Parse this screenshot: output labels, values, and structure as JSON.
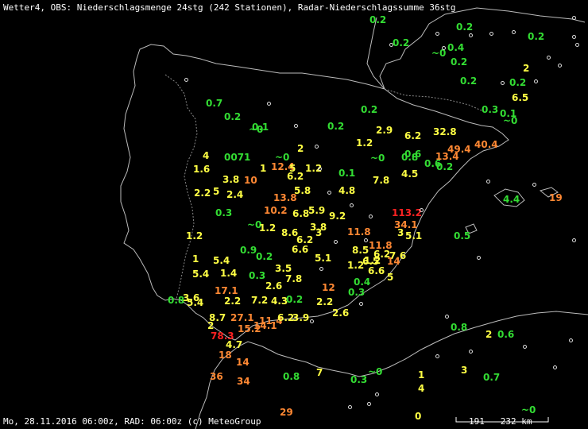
{
  "header": {
    "title": "Wetter4, OBS: Niederschlagsmenge 24stg (242 Stationen), Radar-Niederschlagssumme 36stg"
  },
  "footer": {
    "text": "Mo, 28.11.2016 06:00z, RAD: 06:00z (c) MeteoGroup",
    "scale_label": "191 - 232 km"
  },
  "colors": {
    "background": "#000000",
    "coast": "#bbbbbb",
    "low": "#33dd33",
    "mid": "#ffff44",
    "high": "#ff8833",
    "extreme": "#ff2222"
  },
  "observations": [
    {
      "v": "0.2",
      "c": "g"
    },
    {
      "v": "0.2",
      "c": "g"
    },
    {
      "v": "0.2",
      "c": "g"
    },
    {
      "v": "0.4",
      "c": "g"
    },
    {
      "v": "0.2",
      "c": "g"
    },
    {
      "v": "~0",
      "c": "g"
    },
    {
      "v": "0.2",
      "c": "g"
    },
    {
      "v": "2",
      "c": "y"
    },
    {
      "v": "0.2",
      "c": "g"
    },
    {
      "v": "0.2",
      "c": "g"
    },
    {
      "v": "6.5",
      "c": "y"
    },
    {
      "v": "0.7",
      "c": "g"
    },
    {
      "v": "0.2",
      "c": "g"
    },
    {
      "v": "0.3",
      "c": "g"
    },
    {
      "v": "0.1",
      "c": "g"
    },
    {
      "v": "~0",
      "c": "g"
    },
    {
      "v": "0.2",
      "c": "g"
    },
    {
      "v": "0.2",
      "c": "g"
    },
    {
      "v": "~0",
      "c": "g"
    },
    {
      "v": "0.1",
      "c": "g"
    },
    {
      "v": "2.9",
      "c": "y"
    },
    {
      "v": "6.2",
      "c": "y"
    },
    {
      "v": "32.8",
      "c": "y"
    },
    {
      "v": "1.2",
      "c": "y"
    },
    {
      "v": "40.4",
      "c": "o"
    },
    {
      "v": "49.4",
      "c": "o"
    },
    {
      "v": "2",
      "c": "y"
    },
    {
      "v": "4",
      "c": "y"
    },
    {
      "v": "0071",
      "c": "g"
    },
    {
      "v": "~0",
      "c": "g"
    },
    {
      "v": "0.6",
      "c": "g"
    },
    {
      "v": "0.8",
      "c": "g"
    },
    {
      "v": "~0",
      "c": "g"
    },
    {
      "v": "13.4",
      "c": "o"
    },
    {
      "v": "0.6",
      "c": "g"
    },
    {
      "v": "0.2",
      "c": "g"
    },
    {
      "v": "1.6",
      "c": "y"
    },
    {
      "v": "1",
      "c": "y"
    },
    {
      "v": "12.4",
      "c": "o"
    },
    {
      "v": "5",
      "c": "y"
    },
    {
      "v": "1.2",
      "c": "y"
    },
    {
      "v": "0.1",
      "c": "g"
    },
    {
      "v": "4.5",
      "c": "y"
    },
    {
      "v": "3.8",
      "c": "y"
    },
    {
      "v": "10",
      "c": "o"
    },
    {
      "v": "6.2",
      "c": "y"
    },
    {
      "v": "7.8",
      "c": "y"
    },
    {
      "v": "2.2",
      "c": "y"
    },
    {
      "v": "5",
      "c": "y"
    },
    {
      "v": "2.4",
      "c": "y"
    },
    {
      "v": "5.8",
      "c": "y"
    },
    {
      "v": "4.8",
      "c": "y"
    },
    {
      "v": "13.8",
      "c": "o"
    },
    {
      "v": "4.4",
      "c": "g"
    },
    {
      "v": "19",
      "c": "o"
    },
    {
      "v": "0.3",
      "c": "g"
    },
    {
      "v": "10.2",
      "c": "o"
    },
    {
      "v": "6.8",
      "c": "y"
    },
    {
      "v": "5.9",
      "c": "y"
    },
    {
      "v": "9.2",
      "c": "y"
    },
    {
      "v": "113.2",
      "c": "r"
    },
    {
      "v": "34.1",
      "c": "o"
    },
    {
      "v": "~0",
      "c": "g"
    },
    {
      "v": "1.2",
      "c": "y"
    },
    {
      "v": "8.6",
      "c": "y"
    },
    {
      "v": "3.8",
      "c": "y"
    },
    {
      "v": "3",
      "c": "y"
    },
    {
      "v": "11.8",
      "c": "o"
    },
    {
      "v": "3",
      "c": "y"
    },
    {
      "v": "5.1",
      "c": "y"
    },
    {
      "v": "1.2",
      "c": "y"
    },
    {
      "v": "6.2",
      "c": "y"
    },
    {
      "v": "0.5",
      "c": "g"
    },
    {
      "v": "0.9",
      "c": "g"
    },
    {
      "v": "6.6",
      "c": "y"
    },
    {
      "v": "11.8",
      "c": "o"
    },
    {
      "v": "1.2",
      "c": "y"
    },
    {
      "v": "8.5",
      "c": "y"
    },
    {
      "v": "6.2",
      "c": "y"
    },
    {
      "v": "7.6",
      "c": "y"
    },
    {
      "v": "1",
      "c": "y"
    },
    {
      "v": "5.4",
      "c": "y"
    },
    {
      "v": "0.2",
      "c": "g"
    },
    {
      "v": "5.1",
      "c": "y"
    },
    {
      "v": "6.5",
      "c": "y"
    },
    {
      "v": "14",
      "c": "o"
    },
    {
      "v": "3.5",
      "c": "y"
    },
    {
      "v": "1.2",
      "c": "y"
    },
    {
      "v": "5.4",
      "c": "y"
    },
    {
      "v": "1.4",
      "c": "y"
    },
    {
      "v": "0.3",
      "c": "g"
    },
    {
      "v": "7.8",
      "c": "y"
    },
    {
      "v": "6.6",
      "c": "y"
    },
    {
      "v": "5",
      "c": "y"
    },
    {
      "v": "2.6",
      "c": "y"
    },
    {
      "v": "0.4",
      "c": "g"
    },
    {
      "v": "12",
      "c": "o"
    },
    {
      "v": "17.1",
      "c": "o"
    },
    {
      "v": "0.3",
      "c": "g"
    },
    {
      "v": "0.8",
      "c": "g"
    },
    {
      "v": "3.6",
      "c": "y"
    },
    {
      "v": "5.4",
      "c": "y"
    },
    {
      "v": "2.2",
      "c": "y"
    },
    {
      "v": "7.2",
      "c": "y"
    },
    {
      "v": "4.3",
      "c": "y"
    },
    {
      "v": "0.2",
      "c": "g"
    },
    {
      "v": "2.2",
      "c": "y"
    },
    {
      "v": "2.6",
      "c": "y"
    },
    {
      "v": "8.7",
      "c": "y"
    },
    {
      "v": "27.1",
      "c": "o"
    },
    {
      "v": "11.4",
      "c": "o"
    },
    {
      "v": "6.2",
      "c": "y"
    },
    {
      "v": "3.9",
      "c": "y"
    },
    {
      "v": "2",
      "c": "y"
    },
    {
      "v": "15.2",
      "c": "o"
    },
    {
      "v": "14.1",
      "c": "o"
    },
    {
      "v": "0.8",
      "c": "g"
    },
    {
      "v": "2",
      "c": "y"
    },
    {
      "v": "0.6",
      "c": "g"
    },
    {
      "v": "78.3",
      "c": "r"
    },
    {
      "v": "4.7",
      "c": "y"
    },
    {
      "v": "18",
      "c": "o"
    },
    {
      "v": "14",
      "c": "o"
    },
    {
      "v": "36",
      "c": "o"
    },
    {
      "v": "0.8",
      "c": "g"
    },
    {
      "v": "7",
      "c": "y"
    },
    {
      "v": "~0",
      "c": "g"
    },
    {
      "v": "1",
      "c": "y"
    },
    {
      "v": "3",
      "c": "y"
    },
    {
      "v": "34",
      "c": "o"
    },
    {
      "v": "0.3",
      "c": "g"
    },
    {
      "v": "0.7",
      "c": "g"
    },
    {
      "v": "4",
      "c": "y"
    },
    {
      "v": "~0",
      "c": "g"
    },
    {
      "v": "29",
      "c": "o"
    },
    {
      "v": "0",
      "c": "y"
    }
  ]
}
